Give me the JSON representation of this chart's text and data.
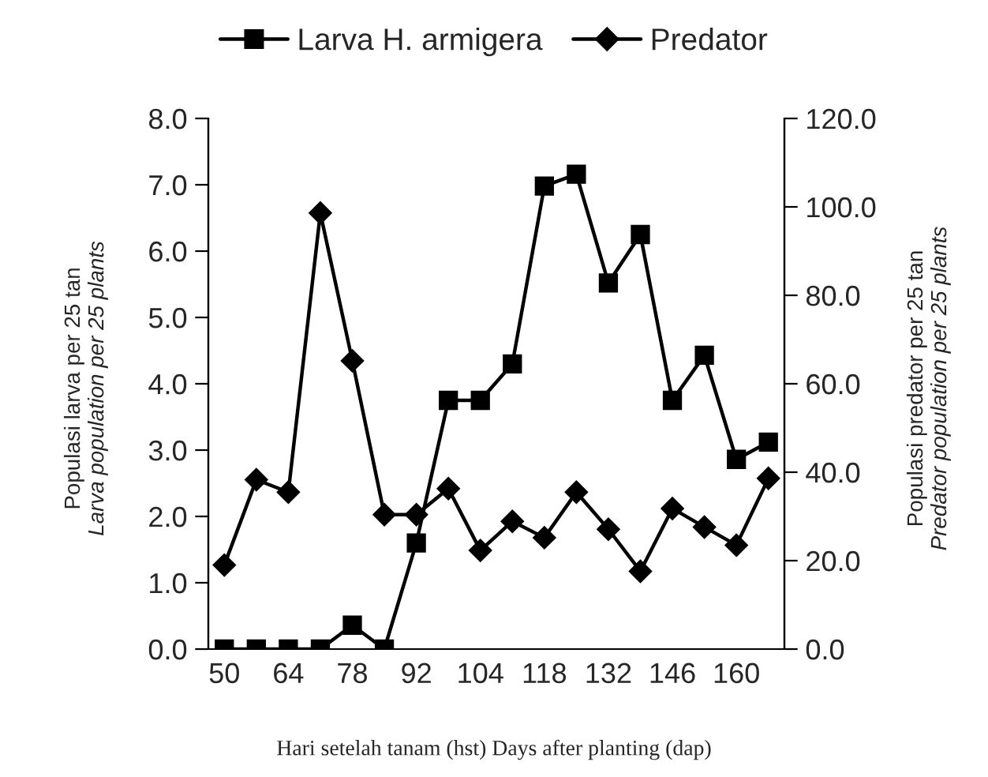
{
  "chart_data": {
    "type": "line",
    "xlabel": "Hari setelah tanam (hst) Days after planting (dap)",
    "ylabel": "Populasi larva per 25 tan\nLarva population per 25 plants",
    "y2label": "Populasi predator per 25 tan\nPredator population per 25 plants",
    "categories": [
      "50",
      null,
      "64",
      null,
      "78",
      null,
      "92",
      null,
      "104",
      null,
      "118",
      null,
      "132",
      null,
      "146",
      null,
      "160",
      null
    ],
    "series": [
      {
        "name": "Larva H. armigera",
        "color": "#000000",
        "marker": "square",
        "values": [
          0,
          0,
          0,
          0,
          0.36,
          0,
          1.6,
          3.75,
          3.75,
          4.3,
          6.98,
          7.16,
          5.52,
          6.25,
          3.75,
          4.43,
          2.86,
          3.12
        ]
      },
      {
        "name": "Predator",
        "color": "#000000",
        "marker": "diamond",
        "axis": "y2",
        "values": [
          19.0,
          38.3,
          35.5,
          98.6,
          65.2,
          30.4,
          30.4,
          36.3,
          22.3,
          28.9,
          25.2,
          35.5,
          27.1,
          17.6,
          31.8,
          27.6,
          23.5,
          38.6
        ]
      }
    ],
    "ylim": [
      0,
      8
    ],
    "yticks": [
      {
        "value": 0,
        "label": "0.0"
      },
      {
        "value": 1,
        "label": "1.0"
      },
      {
        "value": 2,
        "label": "2.0"
      },
      {
        "value": 3,
        "label": "3.0"
      },
      {
        "value": 4,
        "label": "4.0"
      },
      {
        "value": 5,
        "label": "5.0"
      },
      {
        "value": 6,
        "label": "6.0"
      },
      {
        "value": 7,
        "label": "7.0"
      },
      {
        "value": 8,
        "label": "8.0"
      }
    ],
    "y2lim": [
      0,
      120
    ],
    "y2ticks": [
      {
        "value": 0,
        "label": "0.0"
      },
      {
        "value": 20,
        "label": "20.0"
      },
      {
        "value": 40,
        "label": "40.0"
      },
      {
        "value": 60,
        "label": "60.0"
      },
      {
        "value": 80,
        "label": "80.0"
      },
      {
        "value": 100,
        "label": "100.0"
      },
      {
        "value": 120,
        "label": "120.0"
      }
    ],
    "legend": "top",
    "grid": false,
    "line_style": "solid"
  }
}
